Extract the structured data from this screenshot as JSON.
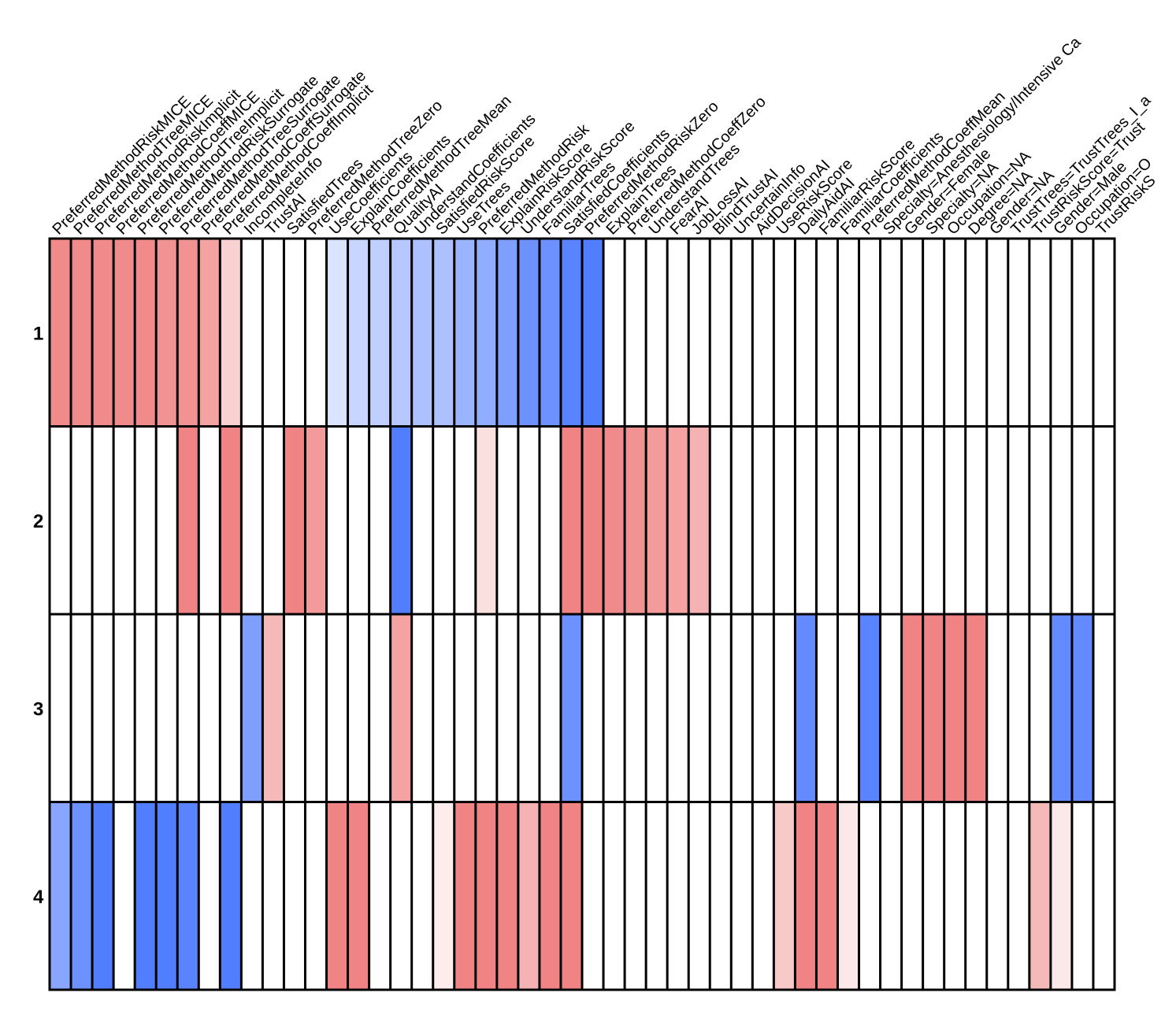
{
  "chart_data": {
    "type": "heatmap",
    "title": "",
    "rows": [
      "1",
      "2",
      "3",
      "4"
    ],
    "columns": [
      "PreferredMethodRiskMICE",
      "PreferredMethodTreeMICE",
      "PreferredMethodRiskImplicit",
      "PreferredMethodCoeffMICE",
      "PreferredMethodTreeImplicit",
      "PreferredMethodRiskSurrogate",
      "PreferredMethodTreeSurrogate",
      "PreferredMethodCoeffSurrogate",
      "PreferredMethodCoeffImplicit",
      "IncompleteInfo",
      "TrustAI",
      "SatisfiedTrees",
      "PreferredMethodTreeZero",
      "UseCoefficients",
      "ExplainCoefficients",
      "PreferredMethodTreeMean",
      "QualityAI",
      "UnderstandCoefficients",
      "SatisfiedRiskScore",
      "UseTrees",
      "PreferredMethodRisk",
      "ExplainRiskScore",
      "UnderstandRiskScore",
      "FamiliarTrees",
      "SatisfiedCoefficients",
      "PreferredMethodRiskZero",
      "ExplainTrees",
      "PreferredMethodCoeffZero",
      "UnderstandTrees",
      "FearAI",
      "JobLossAI",
      "BlindTrustAI",
      "UncertainInfo",
      "AidDecisionAI",
      "UseRiskScore",
      "DailyAidAI",
      "FamiliarRiskScore",
      "FamiliarCoefficients",
      "PreferredMethodCoeffMean",
      "Specialty=Anesthesiology/Intensive Ca",
      "Gender=Female",
      "Specialty=NA",
      "Occupation=NA",
      "Degree=NA",
      "Gender=NA",
      "TrustTrees=TrustTrees_I_a",
      "TrustRiskScore=Trust",
      "Gender=Male",
      "Occupation=O",
      "TrustRiskS"
    ],
    "value_scale": "signed intensity, -1 (blue) to +1 (red), 0 = white",
    "values": [
      [
        0.75,
        0.75,
        0.75,
        0.75,
        0.75,
        0.7,
        0.7,
        0.6,
        0.3,
        0,
        0,
        0,
        0,
        -0.2,
        -0.3,
        -0.35,
        -0.4,
        -0.45,
        -0.45,
        -0.55,
        -0.6,
        -0.7,
        -0.8,
        -0.8,
        -0.9,
        -0.95,
        0,
        0,
        0,
        0,
        0,
        0,
        0,
        0,
        0,
        0,
        0,
        0,
        0,
        0,
        0,
        0,
        0,
        0,
        0,
        0,
        0,
        0,
        0,
        0
      ],
      [
        0,
        0,
        0,
        0,
        0,
        0,
        0.8,
        0,
        0.8,
        0,
        0,
        0.8,
        0.65,
        0,
        0,
        0,
        -0.95,
        0,
        0,
        0,
        0.2,
        0,
        0,
        0,
        0.8,
        0.8,
        0.75,
        0.7,
        0.65,
        0.6,
        0.5,
        0,
        0,
        0,
        0,
        0,
        0,
        0,
        0,
        0,
        0,
        0,
        0,
        0,
        0,
        0,
        0,
        0,
        0,
        0
      ],
      [
        0,
        0,
        0,
        0,
        0,
        0,
        0,
        0,
        0,
        -0.7,
        0.45,
        0,
        0,
        0,
        0,
        0,
        0.6,
        0,
        0,
        0,
        0,
        0,
        0,
        0,
        -0.8,
        0,
        0,
        0,
        0,
        0,
        0,
        0,
        0,
        0,
        0,
        -0.85,
        0,
        0,
        -0.9,
        0,
        0.8,
        0.8,
        0.8,
        0.8,
        0,
        0,
        0,
        -0.85,
        -0.85,
        0
      ],
      [
        -0.65,
        -0.8,
        -0.95,
        0,
        -0.95,
        -0.95,
        -0.9,
        0,
        -0.95,
        0,
        0,
        0,
        0,
        0.8,
        0.8,
        0,
        0,
        0,
        0.12,
        0.8,
        0.8,
        0.8,
        0.5,
        0.8,
        0.8,
        0,
        0,
        0,
        0,
        0,
        0,
        0,
        0,
        0,
        0.35,
        0.8,
        0.8,
        0.15,
        0,
        0,
        0,
        0,
        0,
        0,
        0,
        0,
        0.45,
        0.15,
        0,
        0
      ]
    ]
  }
}
